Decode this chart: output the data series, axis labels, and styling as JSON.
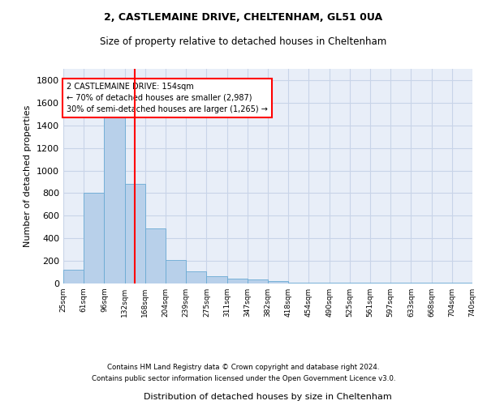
{
  "title1": "2, CASTLEMAINE DRIVE, CHELTENHAM, GL51 0UA",
  "title2": "Size of property relative to detached houses in Cheltenham",
  "xlabel": "Distribution of detached houses by size in Cheltenham",
  "ylabel": "Number of detached properties",
  "footnote1": "Contains HM Land Registry data © Crown copyright and database right 2024.",
  "footnote2": "Contains public sector information licensed under the Open Government Licence v3.0.",
  "bar_heights": [
    125,
    800,
    1490,
    880,
    490,
    205,
    105,
    65,
    45,
    35,
    25,
    10,
    5,
    5,
    5,
    5,
    5,
    5,
    5,
    5
  ],
  "categories": [
    "25sqm",
    "61sqm",
    "96sqm",
    "132sqm",
    "168sqm",
    "204sqm",
    "239sqm",
    "275sqm",
    "311sqm",
    "347sqm",
    "382sqm",
    "418sqm",
    "454sqm",
    "490sqm",
    "525sqm",
    "561sqm",
    "597sqm",
    "633sqm",
    "668sqm",
    "704sqm",
    "740sqm"
  ],
  "bar_color": "#b8d0ea",
  "bar_edge_color": "#6aaad4",
  "grid_color": "#c8d4e8",
  "background_color": "#e8eef8",
  "vline_color": "red",
  "vline_x": 3,
  "annotation_text": "2 CASTLEMAINE DRIVE: 154sqm\n← 70% of detached houses are smaller (2,987)\n30% of semi-detached houses are larger (1,265) →",
  "ylim": [
    0,
    1900
  ],
  "yticks": [
    0,
    200,
    400,
    600,
    800,
    1000,
    1200,
    1400,
    1600,
    1800
  ]
}
